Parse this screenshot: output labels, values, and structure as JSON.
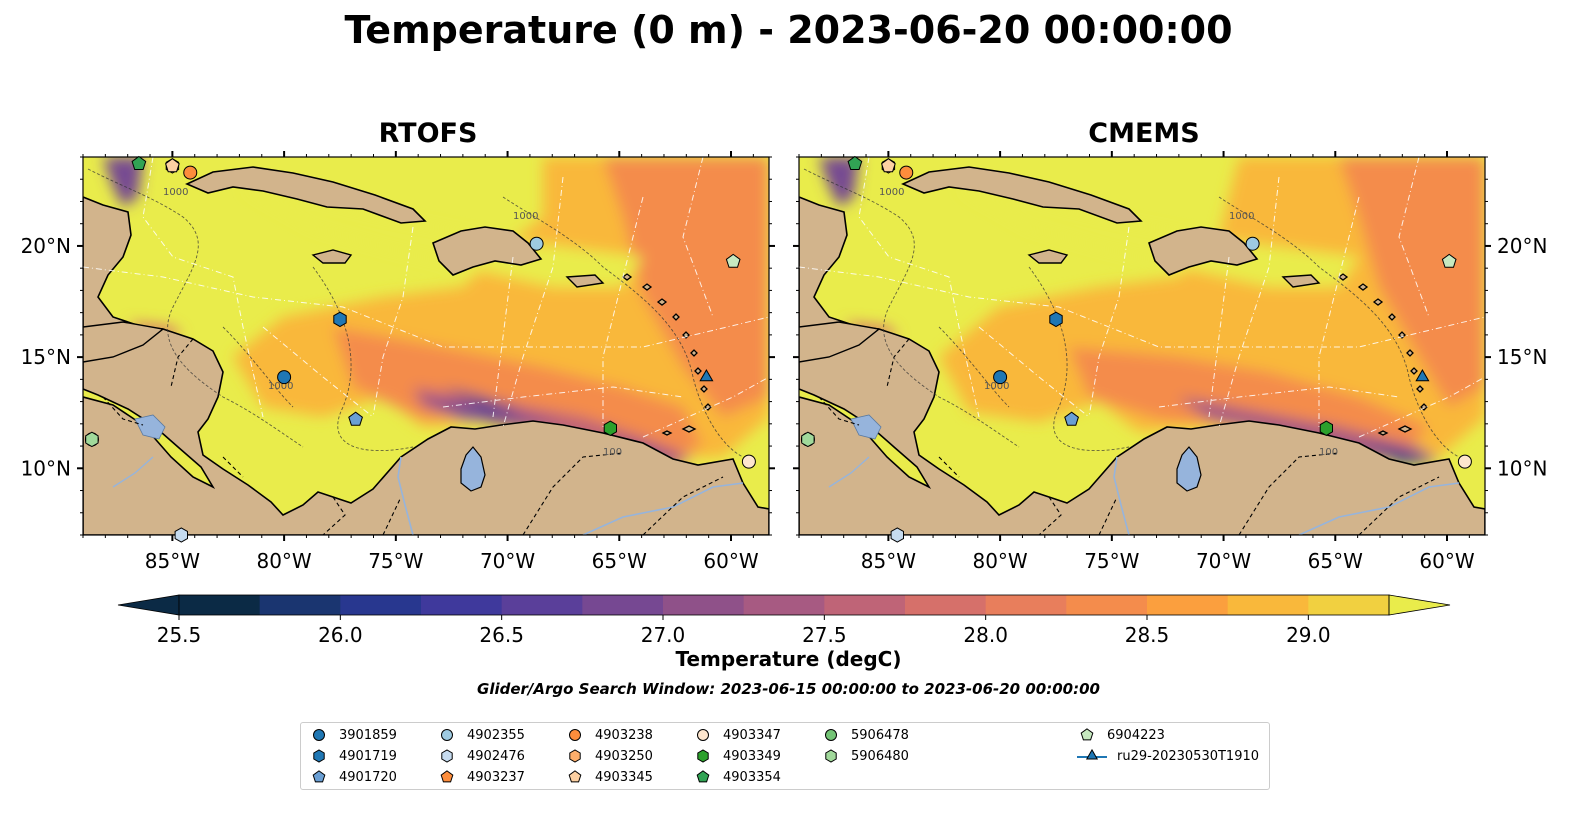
{
  "title": "Temperature (0 m) - 2023-06-20 00:00:00",
  "panels": [
    {
      "title": "RTOFS"
    },
    {
      "title": "CMEMS"
    }
  ],
  "map": {
    "extent": {
      "lon": [
        -89,
        -58.3
      ],
      "lat": [
        7,
        24
      ]
    },
    "lon_ticks": [
      {
        "value": -85,
        "label": "85°W"
      },
      {
        "value": -80,
        "label": "80°W"
      },
      {
        "value": -75,
        "label": "75°W"
      },
      {
        "value": -70,
        "label": "70°W"
      },
      {
        "value": -65,
        "label": "65°W"
      },
      {
        "value": -60,
        "label": "60°W"
      }
    ],
    "lat_ticks": [
      {
        "value": 20,
        "label": "20°N"
      },
      {
        "value": 15,
        "label": "15°N"
      },
      {
        "value": 10,
        "label": "10°N"
      }
    ],
    "contour_labels": [
      "1000",
      "100",
      "100"
    ],
    "colors": {
      "land": "#d2b48c",
      "water": "#96b4dc",
      "coast": "#000000"
    }
  },
  "colorbar": {
    "label": "Temperature (degC)",
    "min": 25.5,
    "max": 29.25,
    "step": 0.25,
    "ticks": [
      "25.5",
      "26.0",
      "26.5",
      "27.0",
      "27.5",
      "28.0",
      "28.5",
      "29.0"
    ],
    "colors": [
      "#0b2a45",
      "#1a3570",
      "#28378f",
      "#3f399c",
      "#5a3f9a",
      "#764892",
      "#8f5189",
      "#a75a82",
      "#bf6477",
      "#d6706a",
      "#e87e5c",
      "#f48c4c",
      "#fb9f3e",
      "#f9b83b",
      "#f1d040",
      "#e9ec4b"
    ]
  },
  "search_window": "Glider/Argo Search Window: 2023-06-15 00:00:00 to 2023-06-20 00:00:00",
  "legend": [
    {
      "label": "3901859",
      "marker": "circle",
      "color": "#1f77b4"
    },
    {
      "label": "4901719",
      "marker": "hexagon",
      "color": "#1f77b4"
    },
    {
      "label": "4901720",
      "marker": "pentagon",
      "color": "#6a9fd4"
    },
    {
      "label": "4902355",
      "marker": "circle",
      "color": "#9ecae1"
    },
    {
      "label": "4902476",
      "marker": "hexagon",
      "color": "#c6dbef"
    },
    {
      "label": "4903237",
      "marker": "pentagon",
      "color": "#fd8d3c"
    },
    {
      "label": "4903238",
      "marker": "circle",
      "color": "#fd8d3c"
    },
    {
      "label": "4903250",
      "marker": "hexagon",
      "color": "#fdae6b"
    },
    {
      "label": "4903345",
      "marker": "pentagon",
      "color": "#fdd0a2"
    },
    {
      "label": "4903347",
      "marker": "circle",
      "color": "#fee6ce"
    },
    {
      "label": "4903349",
      "marker": "hexagon",
      "color": "#2ca02c"
    },
    {
      "label": "4903354",
      "marker": "pentagon",
      "color": "#31a354"
    },
    {
      "label": "5906478",
      "marker": "circle",
      "color": "#74c476"
    },
    {
      "label": "5906480",
      "marker": "hexagon",
      "color": "#a1d99b"
    },
    {
      "label": "6904223",
      "marker": "pentagon",
      "color": "#c7e9c0"
    },
    {
      "label": "ru29-20230530T1910",
      "marker": "triangle-line",
      "color": "#1f77b4"
    }
  ],
  "platforms": [
    {
      "id": "3901859",
      "lon": -80.0,
      "lat": 14.1
    },
    {
      "id": "4901719",
      "lon": -77.5,
      "lat": 16.7
    },
    {
      "id": "4901720",
      "lon": -76.8,
      "lat": 12.2
    },
    {
      "id": "4902355",
      "lon": -68.7,
      "lat": 20.1
    },
    {
      "id": "4902476",
      "lon": -84.6,
      "lat": 7.0
    },
    {
      "id": "4903238",
      "lon": -84.2,
      "lat": 23.3
    },
    {
      "id": "4903250",
      "lon": -85.0,
      "lat": 23.6
    },
    {
      "id": "4903345",
      "lon": -85.0,
      "lat": 23.6
    },
    {
      "id": "4903347",
      "lon": -59.2,
      "lat": 10.3
    },
    {
      "id": "4903349",
      "lon": -65.4,
      "lat": 11.8
    },
    {
      "id": "4903354",
      "lon": -86.5,
      "lat": 23.7
    },
    {
      "id": "5906478",
      "lon": -88.6,
      "lat": 11.3
    },
    {
      "id": "5906480",
      "lon": -88.6,
      "lat": 11.3
    },
    {
      "id": "6904223",
      "lon": -59.9,
      "lat": 19.3
    },
    {
      "id": "ru29-20230530T1910",
      "lon": -61.1,
      "lat": 14.1
    }
  ]
}
